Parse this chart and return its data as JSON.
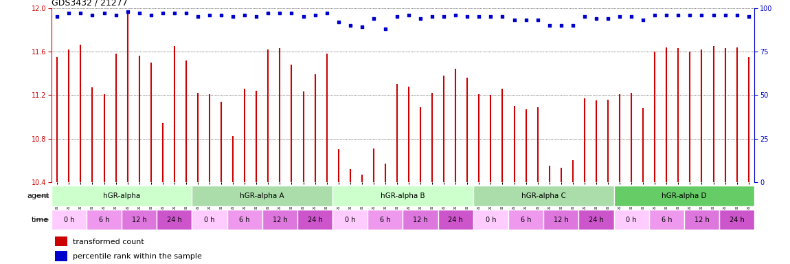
{
  "title": "GDS3432 / 21277",
  "samples": [
    "GSM154259",
    "GSM154260",
    "GSM154261",
    "GSM154274",
    "GSM154275",
    "GSM154276",
    "GSM154289",
    "GSM154290",
    "GSM154291",
    "GSM154304",
    "GSM154305",
    "GSM154306",
    "GSM154262",
    "GSM154263",
    "GSM154264",
    "GSM154277",
    "GSM154278",
    "GSM154279",
    "GSM154292",
    "GSM154293",
    "GSM154294",
    "GSM154307",
    "GSM154308",
    "GSM154309",
    "GSM154265",
    "GSM154266",
    "GSM154267",
    "GSM154280",
    "GSM154281",
    "GSM154282",
    "GSM154295",
    "GSM154296",
    "GSM154297",
    "GSM154310",
    "GSM154311",
    "GSM154312",
    "GSM154268",
    "GSM154269",
    "GSM154270",
    "GSM154283",
    "GSM154284",
    "GSM154285",
    "GSM154298",
    "GSM154299",
    "GSM154300",
    "GSM154313",
    "GSM154314",
    "GSM154315",
    "GSM154271",
    "GSM154272",
    "GSM154273",
    "GSM154286",
    "GSM154287",
    "GSM154288",
    "GSM154301",
    "GSM154302",
    "GSM154303",
    "GSM154316",
    "GSM154317",
    "GSM154318"
  ],
  "bar_values": [
    11.55,
    11.62,
    11.66,
    11.27,
    11.21,
    11.58,
    11.95,
    11.56,
    11.5,
    10.94,
    11.65,
    11.52,
    11.22,
    11.21,
    11.14,
    10.82,
    11.26,
    11.24,
    11.62,
    11.63,
    11.48,
    11.23,
    11.39,
    11.58,
    10.7,
    10.52,
    10.47,
    10.71,
    10.57,
    11.3,
    11.28,
    11.09,
    11.22,
    11.38,
    11.44,
    11.36,
    11.21,
    11.2,
    11.26,
    11.1,
    11.07,
    11.09,
    10.55,
    10.53,
    10.6,
    11.17,
    11.15,
    11.16,
    11.21,
    11.22,
    11.08,
    11.6,
    11.64,
    11.63,
    11.6,
    11.62,
    11.65,
    11.63,
    11.64,
    11.55
  ],
  "percentile_values": [
    95,
    97,
    97,
    96,
    97,
    96,
    98,
    97,
    96,
    97,
    97,
    97,
    95,
    96,
    96,
    95,
    96,
    95,
    97,
    97,
    97,
    95,
    96,
    97,
    92,
    90,
    89,
    94,
    88,
    95,
    96,
    94,
    95,
    95,
    96,
    95,
    95,
    95,
    95,
    93,
    93,
    93,
    90,
    90,
    90,
    95,
    94,
    94,
    95,
    95,
    93,
    96,
    96,
    96,
    96,
    96,
    96,
    96,
    96,
    95
  ],
  "ylim_left": [
    10.4,
    12.0
  ],
  "ylim_right": [
    0,
    100
  ],
  "yticks_left": [
    10.4,
    10.8,
    11.2,
    11.6,
    12.0
  ],
  "yticks_right": [
    0,
    25,
    50,
    75,
    100
  ],
  "bar_color": "#cc0000",
  "dot_color": "#0000cc",
  "agent_groups": [
    {
      "label": "hGR-alpha",
      "start": 0,
      "end": 12
    },
    {
      "label": "hGR-alpha A",
      "start": 12,
      "end": 24
    },
    {
      "label": "hGR-alpha B",
      "start": 24,
      "end": 36
    },
    {
      "label": "hGR-alpha C",
      "start": 36,
      "end": 48
    },
    {
      "label": "hGR-alpha D",
      "start": 48,
      "end": 60
    }
  ],
  "agent_colors": [
    "#ccffcc",
    "#aaddaa",
    "#ccffcc",
    "#aaddaa",
    "#66cc66"
  ],
  "time_labels": [
    "0 h",
    "6 h",
    "12 h",
    "24 h"
  ],
  "time_colors": [
    "#ffccff",
    "#ee99ee",
    "#dd77dd",
    "#cc55cc"
  ],
  "samples_per_time": 3,
  "num_time_groups": 4,
  "background_color": "#ffffff",
  "bar_color_legend": "#cc0000",
  "dot_color_legend": "#0000cc"
}
